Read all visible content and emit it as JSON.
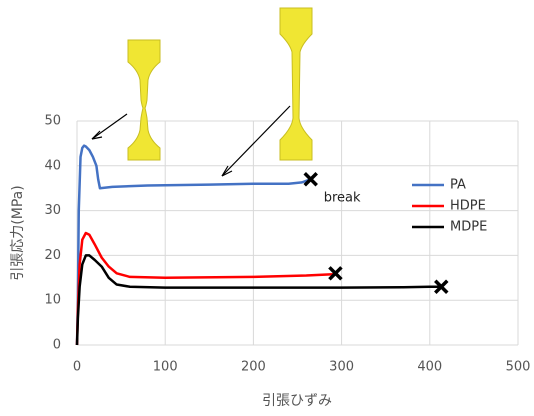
{
  "chart_data": {
    "type": "line",
    "x_label": "引張ひずみ",
    "y_label": "引張応力(MPa)",
    "annotation": "break",
    "xlim": [
      0,
      500
    ],
    "xticks": [
      0,
      100,
      200,
      300,
      400,
      500
    ],
    "ylim": [
      0,
      50
    ],
    "yticks": [
      0,
      10,
      20,
      30,
      40,
      50
    ],
    "grid": true,
    "legend": "right",
    "series": [
      {
        "name": "PA",
        "color": "#4472c4",
        "x": [
          0,
          1,
          2,
          4,
          6,
          8,
          10,
          14,
          18,
          22,
          24,
          26,
          40,
          80,
          150,
          200,
          240,
          255,
          262,
          265
        ],
        "values": [
          0,
          10,
          30,
          42,
          44,
          44.5,
          44.3,
          43.5,
          42,
          40,
          37,
          35,
          35.3,
          35.6,
          35.8,
          36,
          36,
          36.3,
          36.8,
          37
        ],
        "break_point": {
          "x": 265,
          "y": 37
        }
      },
      {
        "name": "HDPE",
        "color": "#ff0000",
        "x": [
          0,
          1,
          3,
          6,
          10,
          14,
          20,
          28,
          36,
          45,
          60,
          100,
          200,
          260,
          290,
          293
        ],
        "values": [
          0,
          8,
          18,
          23.5,
          25,
          24.6,
          22.5,
          19.5,
          17.5,
          16,
          15.2,
          15,
          15.2,
          15.5,
          15.8,
          16
        ],
        "break_point": {
          "x": 293,
          "y": 16
        }
      },
      {
        "name": "MDPE",
        "color": "#000000",
        "x": [
          0,
          1,
          3,
          6,
          10,
          14,
          20,
          28,
          36,
          45,
          60,
          100,
          200,
          300,
          370,
          400,
          413
        ],
        "values": [
          0,
          6,
          13,
          18,
          20,
          20,
          19,
          17.5,
          15,
          13.5,
          13,
          12.8,
          12.8,
          12.8,
          12.9,
          13,
          13
        ],
        "break_point": {
          "x": 413,
          "y": 13
        }
      }
    ]
  }
}
